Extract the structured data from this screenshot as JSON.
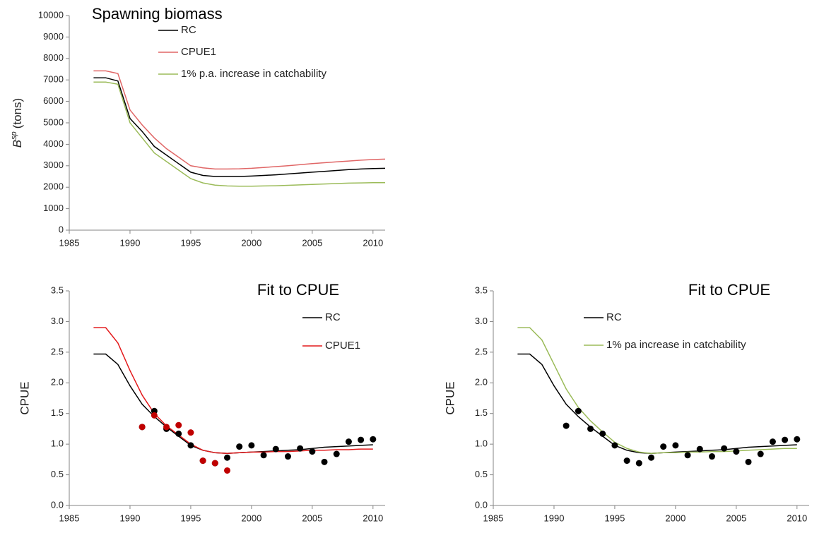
{
  "chart_data": [
    {
      "type": "line",
      "title": "Spawning biomass",
      "y_label": {
        "main": "B",
        "sup": "sp",
        "rest": "(tons)"
      },
      "x": [
        1987,
        1988,
        1989,
        1990,
        1991,
        1992,
        1993,
        1994,
        1995,
        1996,
        1997,
        1998,
        1999,
        2000,
        2001,
        2002,
        2003,
        2004,
        2005,
        2006,
        2007,
        2008,
        2009,
        2010,
        2011
      ],
      "series": [
        {
          "name": "RC",
          "color": "#000000",
          "values": [
            7100,
            7100,
            6950,
            5200,
            4600,
            3900,
            3500,
            3100,
            2700,
            2550,
            2500,
            2500,
            2500,
            2520,
            2550,
            2580,
            2620,
            2660,
            2700,
            2740,
            2780,
            2820,
            2850,
            2870,
            2880
          ]
        },
        {
          "name": "CPUE1",
          "color": "#e06666",
          "values": [
            7420,
            7420,
            7300,
            5600,
            4900,
            4300,
            3800,
            3400,
            3000,
            2900,
            2850,
            2850,
            2860,
            2880,
            2920,
            2960,
            3000,
            3050,
            3100,
            3140,
            3180,
            3220,
            3260,
            3290,
            3310
          ]
        },
        {
          "name": "1% p.a. increase in catchability",
          "color": "#9bbb59",
          "values": [
            6900,
            6900,
            6800,
            5000,
            4300,
            3600,
            3200,
            2800,
            2400,
            2200,
            2100,
            2060,
            2050,
            2050,
            2060,
            2070,
            2090,
            2110,
            2130,
            2150,
            2170,
            2190,
            2200,
            2210,
            2210
          ]
        }
      ],
      "xlim": [
        1985,
        2011
      ],
      "xticks": [
        1985,
        1990,
        1995,
        2000,
        2005,
        2010
      ],
      "ylim": [
        0,
        10000
      ],
      "yticks": [
        0,
        1000,
        2000,
        3000,
        4000,
        5000,
        6000,
        7000,
        8000,
        9000,
        10000
      ],
      "legend": "top-left",
      "grid": false
    },
    {
      "type": "line",
      "title": "Fit to CPUE",
      "y_label": "CPUE",
      "x": [
        1987,
        1988,
        1989,
        1990,
        1991,
        1992,
        1993,
        1994,
        1995,
        1996,
        1997,
        1998,
        1999,
        2000,
        2001,
        2002,
        2003,
        2004,
        2005,
        2006,
        2007,
        2008,
        2009,
        2010
      ],
      "series": [
        {
          "name": "RC",
          "color": "#000000",
          "values": [
            2.47,
            2.47,
            2.3,
            1.95,
            1.65,
            1.45,
            1.28,
            1.13,
            0.98,
            0.9,
            0.86,
            0.85,
            0.86,
            0.87,
            0.88,
            0.89,
            0.9,
            0.91,
            0.93,
            0.95,
            0.96,
            0.97,
            0.98,
            0.99
          ]
        },
        {
          "name": "CPUE1",
          "color": "#e31a1c",
          "values": [
            2.9,
            2.9,
            2.65,
            2.2,
            1.8,
            1.5,
            1.3,
            1.15,
            1.0,
            0.9,
            0.86,
            0.85,
            0.86,
            0.87,
            0.87,
            0.88,
            0.88,
            0.89,
            0.9,
            0.9,
            0.91,
            0.91,
            0.92,
            0.92
          ]
        }
      ],
      "points_x": [
        1991,
        1992,
        1993,
        1994,
        1995,
        1996,
        1997,
        1998,
        1999,
        2000,
        2001,
        2002,
        2003,
        2004,
        2005,
        2006,
        2007,
        2008,
        2009,
        2010
      ],
      "points": [
        {
          "color": "#000000",
          "values": [
            1.28,
            1.54,
            1.25,
            1.17,
            0.98,
            0.73,
            0.69,
            0.78,
            0.96,
            0.98,
            0.82,
            0.92,
            0.8,
            0.93,
            0.88,
            0.71,
            0.84,
            1.04,
            1.07,
            1.08
          ]
        },
        {
          "color": "#c00000",
          "values": [
            1.28,
            1.47,
            1.28,
            1.31,
            1.19,
            0.73,
            0.69,
            0.57,
            null,
            null,
            null,
            null,
            null,
            null,
            null,
            null,
            null,
            null,
            null,
            null
          ]
        }
      ],
      "xlim": [
        1985,
        2011
      ],
      "xticks": [
        1985,
        1990,
        1995,
        2000,
        2005,
        2010
      ],
      "ylim": [
        0,
        3.5
      ],
      "yticks": [
        {
          "value": 0,
          "label": "0.0"
        },
        {
          "value": 0.5,
          "label": "0.5"
        },
        {
          "value": 1,
          "label": "1.0"
        },
        {
          "value": 1.5,
          "label": "1.5"
        },
        {
          "value": 2,
          "label": "2.0"
        },
        {
          "value": 2.5,
          "label": "2.5"
        },
        {
          "value": 3,
          "label": "3.0"
        },
        {
          "value": 3.5,
          "label": "3.5"
        }
      ],
      "legend": "right",
      "grid": false
    },
    {
      "type": "line",
      "title": "Fit to CPUE",
      "y_label": "CPUE",
      "x": [
        1987,
        1988,
        1989,
        1990,
        1991,
        1992,
        1993,
        1994,
        1995,
        1996,
        1997,
        1998,
        1999,
        2000,
        2001,
        2002,
        2003,
        2004,
        2005,
        2006,
        2007,
        2008,
        2009,
        2010
      ],
      "series": [
        {
          "name": "RC",
          "color": "#000000",
          "values": [
            2.47,
            2.47,
            2.3,
            1.95,
            1.65,
            1.45,
            1.28,
            1.13,
            0.98,
            0.9,
            0.86,
            0.85,
            0.86,
            0.87,
            0.88,
            0.89,
            0.9,
            0.91,
            0.93,
            0.95,
            0.96,
            0.97,
            0.98,
            0.99
          ]
        },
        {
          "name": "1% pa increase in catchability",
          "color": "#9bbb59",
          "values": [
            2.9,
            2.9,
            2.7,
            2.3,
            1.9,
            1.6,
            1.38,
            1.2,
            1.03,
            0.93,
            0.87,
            0.85,
            0.86,
            0.86,
            0.87,
            0.87,
            0.88,
            0.88,
            0.89,
            0.9,
            0.91,
            0.92,
            0.93,
            0.93
          ]
        }
      ],
      "points_x": [
        1991,
        1992,
        1993,
        1994,
        1995,
        1996,
        1997,
        1998,
        1999,
        2000,
        2001,
        2002,
        2003,
        2004,
        2005,
        2006,
        2007,
        2008,
        2009,
        2010
      ],
      "points": [
        {
          "color": "#000000",
          "values": [
            1.3,
            1.54,
            1.25,
            1.17,
            0.98,
            0.73,
            0.69,
            0.78,
            0.96,
            0.98,
            0.82,
            0.92,
            0.8,
            0.93,
            0.88,
            0.71,
            0.84,
            1.04,
            1.07,
            1.08
          ]
        }
      ],
      "xlim": [
        1985,
        2011
      ],
      "xticks": [
        1985,
        1990,
        1995,
        2000,
        2005,
        2010
      ],
      "ylim": [
        0,
        3.5
      ],
      "yticks": [
        {
          "value": 0,
          "label": "0.0"
        },
        {
          "value": 0.5,
          "label": "0.5"
        },
        {
          "value": 1,
          "label": "1.0"
        },
        {
          "value": 1.5,
          "label": "1.5"
        },
        {
          "value": 2,
          "label": "2.0"
        },
        {
          "value": 2.5,
          "label": "2.5"
        },
        {
          "value": 3,
          "label": "3.0"
        },
        {
          "value": 3.5,
          "label": "3.5"
        }
      ],
      "legend": "upper-center",
      "grid": false
    }
  ]
}
